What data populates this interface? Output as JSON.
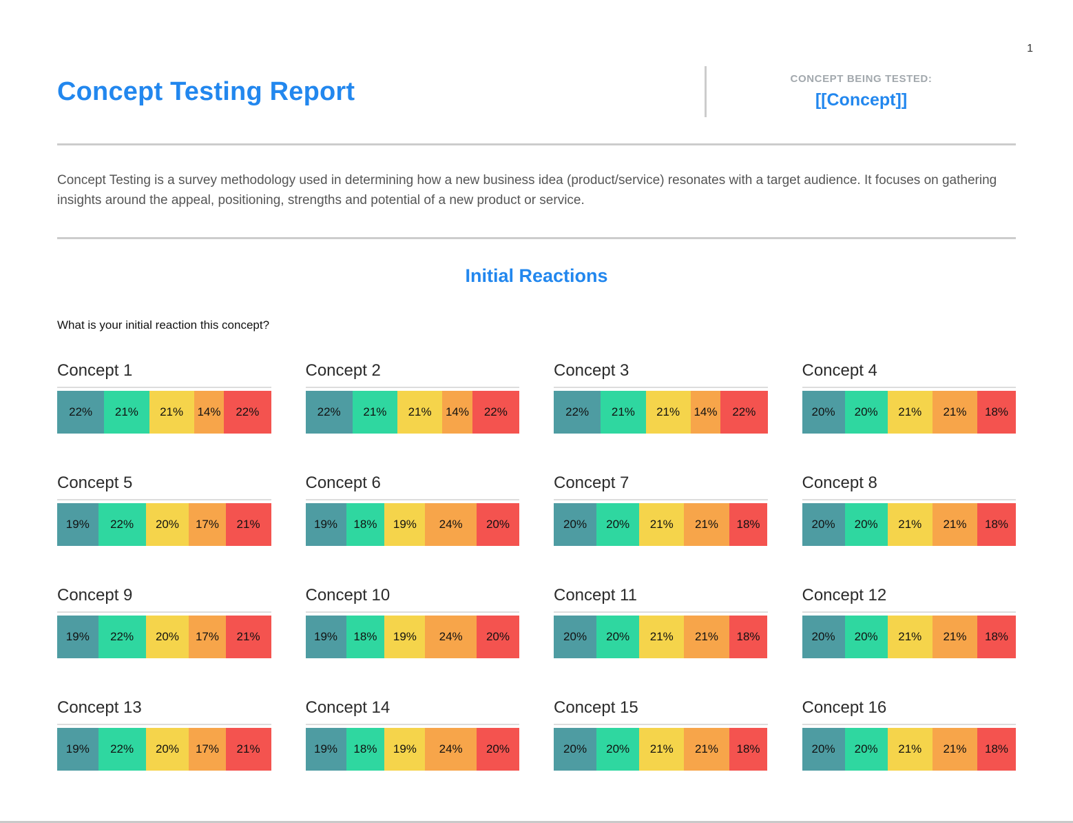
{
  "page": {
    "number": "1"
  },
  "header": {
    "title": "Concept Testing Report",
    "tested_label": "CONCEPT BEING TESTED:",
    "tested_value": "[[Concept]]"
  },
  "intro": "Concept Testing is a survey methodology used in determining how a new business idea (product/service) resonates with a target audience. It focuses on gathering insights around the appeal, positioning, strengths and potential of a new product or service.",
  "section": {
    "title": "Initial Reactions",
    "question": "What is your initial reaction this concept?"
  },
  "colors": {
    "accent_blue": "#2287ee",
    "label_gray": "#a2a8ad",
    "divider_gray": "#cccccc",
    "segments": [
      "#4E9CA2",
      "#2FD7A0",
      "#F5D44B",
      "#F7A54A",
      "#F4534F"
    ]
  },
  "chart_data": {
    "type": "bar",
    "variant": "stacked-horizontal",
    "unit": "%",
    "segment_colors": [
      "#4E9CA2",
      "#2FD7A0",
      "#F5D44B",
      "#F7A54A",
      "#F4534F"
    ],
    "concepts": [
      {
        "title": "Concept 1",
        "values": [
          22,
          21,
          21,
          14,
          22
        ]
      },
      {
        "title": "Concept 2",
        "values": [
          22,
          21,
          21,
          14,
          22
        ]
      },
      {
        "title": "Concept 3",
        "values": [
          22,
          21,
          21,
          14,
          22
        ]
      },
      {
        "title": "Concept 4",
        "values": [
          20,
          20,
          21,
          21,
          18
        ]
      },
      {
        "title": "Concept 5",
        "values": [
          19,
          22,
          20,
          17,
          21
        ]
      },
      {
        "title": "Concept 6",
        "values": [
          19,
          18,
          19,
          24,
          20
        ]
      },
      {
        "title": "Concept 7",
        "values": [
          20,
          20,
          21,
          21,
          18
        ]
      },
      {
        "title": "Concept 8",
        "values": [
          20,
          20,
          21,
          21,
          18
        ]
      },
      {
        "title": "Concept 9",
        "values": [
          19,
          22,
          20,
          17,
          21
        ]
      },
      {
        "title": "Concept 10",
        "values": [
          19,
          18,
          19,
          24,
          20
        ]
      },
      {
        "title": "Concept 11",
        "values": [
          20,
          20,
          21,
          21,
          18
        ]
      },
      {
        "title": "Concept 12",
        "values": [
          20,
          20,
          21,
          21,
          18
        ]
      },
      {
        "title": "Concept 13",
        "values": [
          19,
          22,
          20,
          17,
          21
        ]
      },
      {
        "title": "Concept 14",
        "values": [
          19,
          18,
          19,
          24,
          20
        ]
      },
      {
        "title": "Concept 15",
        "values": [
          20,
          20,
          21,
          21,
          18
        ]
      },
      {
        "title": "Concept 16",
        "values": [
          20,
          20,
          21,
          21,
          18
        ]
      }
    ]
  }
}
